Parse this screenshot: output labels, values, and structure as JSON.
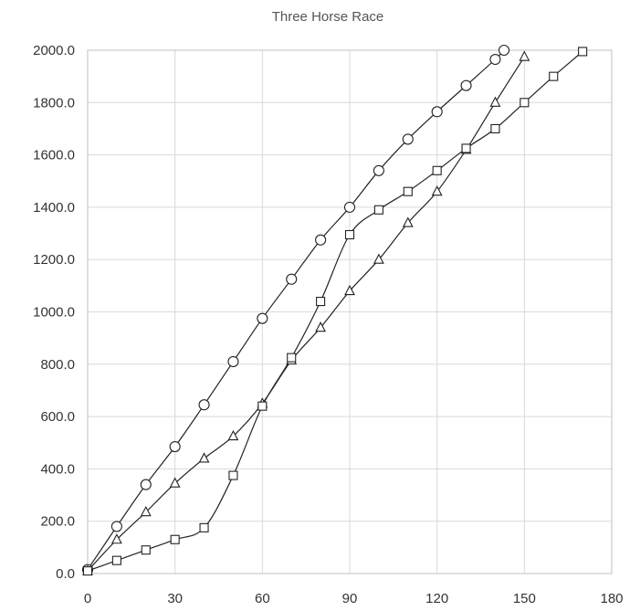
{
  "chart_data": {
    "type": "scatter",
    "title": "Three Horse Race",
    "xlabel": "",
    "ylabel": "",
    "xlim": [
      0,
      180
    ],
    "ylim": [
      0,
      2000
    ],
    "x_ticks": [
      0,
      30,
      60,
      90,
      120,
      150,
      180
    ],
    "y_ticks": [
      0,
      200,
      400,
      600,
      800,
      1000,
      1200,
      1400,
      1600,
      1800,
      2000
    ],
    "x_tick_labels": [
      "0",
      "30",
      "60",
      "90",
      "120",
      "150",
      "180"
    ],
    "y_tick_labels": [
      "0.0",
      "200.0",
      "400.0",
      "600.0",
      "800.0",
      "1000.0",
      "1200.0",
      "1400.0",
      "1600.0",
      "1800.0",
      "2000.0"
    ],
    "grid": true,
    "legend": "none",
    "line_style": "smoothed",
    "series": [
      {
        "marker": "circle",
        "color": "#222222",
        "points": [
          [
            0,
            15
          ],
          [
            10,
            180
          ],
          [
            20,
            340
          ],
          [
            30,
            485
          ],
          [
            40,
            645
          ],
          [
            50,
            810
          ],
          [
            60,
            975
          ],
          [
            70,
            1125
          ],
          [
            80,
            1275
          ],
          [
            90,
            1400
          ],
          [
            100,
            1540
          ],
          [
            110,
            1660
          ],
          [
            120,
            1765
          ],
          [
            130,
            1865
          ],
          [
            140,
            1965
          ],
          [
            143,
            2000
          ]
        ]
      },
      {
        "marker": "triangle",
        "color": "#222222",
        "points": [
          [
            0,
            10
          ],
          [
            10,
            130
          ],
          [
            20,
            235
          ],
          [
            30,
            345
          ],
          [
            40,
            440
          ],
          [
            50,
            525
          ],
          [
            60,
            650
          ],
          [
            70,
            815
          ],
          [
            80,
            940
          ],
          [
            90,
            1080
          ],
          [
            100,
            1200
          ],
          [
            110,
            1340
          ],
          [
            120,
            1460
          ],
          [
            130,
            1620
          ],
          [
            140,
            1800
          ],
          [
            150,
            1975
          ]
        ]
      },
      {
        "marker": "square",
        "color": "#222222",
        "points": [
          [
            0,
            10
          ],
          [
            10,
            50
          ],
          [
            20,
            90
          ],
          [
            30,
            130
          ],
          [
            40,
            175
          ],
          [
            50,
            375
          ],
          [
            60,
            640
          ],
          [
            70,
            825
          ],
          [
            80,
            1040
          ],
          [
            90,
            1295
          ],
          [
            100,
            1390
          ],
          [
            110,
            1460
          ],
          [
            120,
            1540
          ],
          [
            130,
            1625
          ],
          [
            140,
            1700
          ],
          [
            150,
            1800
          ],
          [
            160,
            1900
          ],
          [
            170,
            1995
          ]
        ]
      }
    ]
  }
}
